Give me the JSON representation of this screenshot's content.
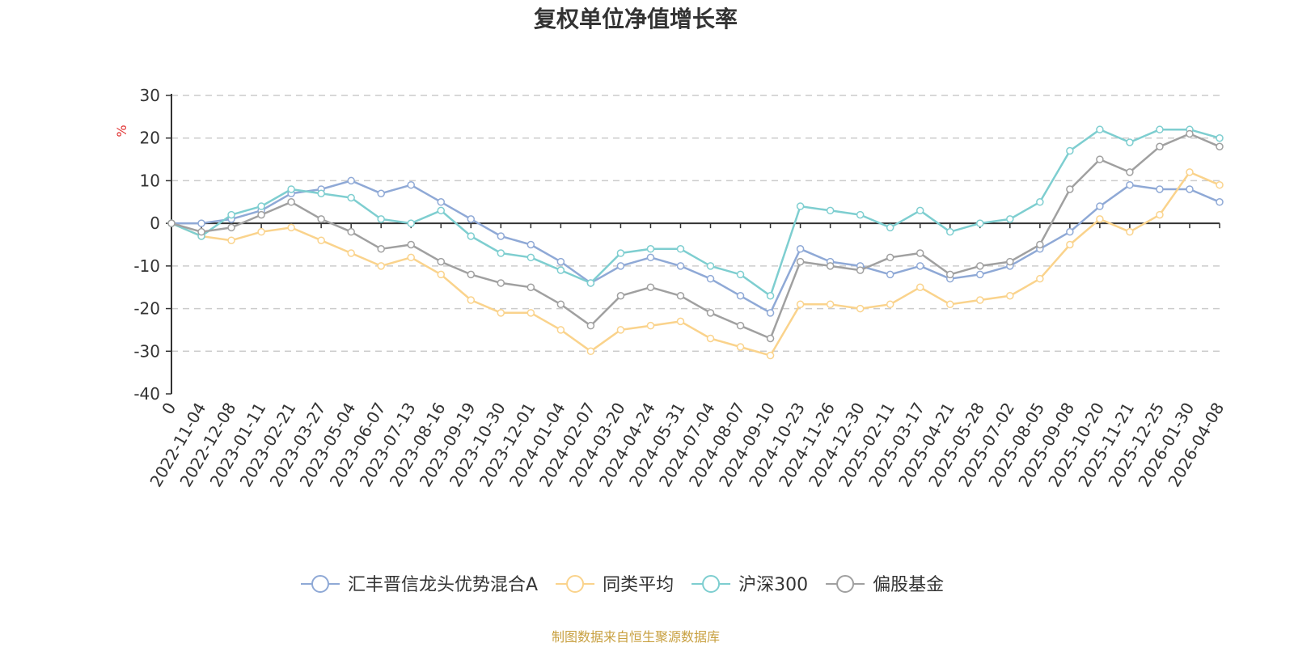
{
  "chart_data": {
    "type": "line",
    "title": "复权单位净值增长率",
    "ylabel": "%",
    "ylim": [
      -40,
      30
    ],
    "yticks": [
      30,
      20,
      10,
      0,
      -10,
      -20,
      -30,
      -40
    ],
    "x_tick_labels": [
      "0",
      "2022-11-04",
      "2022-12-08",
      "2023-01-11",
      "2023-02-21",
      "2023-03-27",
      "2023-05-04",
      "2023-06-07",
      "2023-07-13",
      "2023-08-16",
      "2023-09-19",
      "2023-10-30",
      "2023-12-01",
      "2024-01-04",
      "2024-02-07",
      "2024-03-20",
      "2024-04-24",
      "2024-05-31",
      "2024-07-04",
      "2024-08-07",
      "2024-09-10",
      "2024-10-23",
      "2024-11-26",
      "2024-12-30",
      "2025-02-11",
      "2025-03-17",
      "2025-04-21",
      "2025-05-28",
      "2025-07-02",
      "2025-08-05",
      "2025-09-08",
      "2025-10-20",
      "2025-11-21",
      "2025-12-25",
      "2026-01-30",
      "2026-04-08"
    ],
    "grid": true,
    "legend_position": "bottom-center",
    "series": [
      {
        "name": "汇丰晋信龙头优势混合A",
        "color": "#8FA9D6",
        "values": [
          0,
          0,
          1,
          3,
          7,
          8,
          10,
          7,
          9,
          5,
          1,
          -3,
          -5,
          -9,
          -14,
          -10,
          -8,
          -10,
          -13,
          -17,
          -21,
          -6,
          -9,
          -10,
          -12,
          -10,
          -13,
          -12,
          -10,
          -6,
          -2,
          4,
          9,
          8,
          8,
          5
        ]
      },
      {
        "name": "同类平均",
        "color": "#FAD38C",
        "values": [
          0,
          -3,
          -4,
          -2,
          -1,
          -4,
          -7,
          -10,
          -8,
          -12,
          -18,
          -21,
          -21,
          -25,
          -30,
          -25,
          -24,
          -23,
          -27,
          -29,
          -31,
          -19,
          -19,
          -20,
          -19,
          -15,
          -19,
          -18,
          -17,
          -13,
          -5,
          1,
          -2,
          2,
          12,
          9
        ]
      },
      {
        "name": "沪深300",
        "color": "#7ECED0",
        "values": [
          0,
          -3,
          2,
          4,
          8,
          7,
          6,
          1,
          0,
          3,
          -3,
          -7,
          -8,
          -11,
          -14,
          -7,
          -6,
          -6,
          -10,
          -12,
          -17,
          4,
          3,
          2,
          -1,
          3,
          -2,
          0,
          1,
          5,
          17,
          22,
          19,
          22,
          22,
          20
        ]
      },
      {
        "name": "偏股基金",
        "color": "#A0A0A0",
        "values": [
          0,
          -2,
          -1,
          2,
          5,
          1,
          -2,
          -6,
          -5,
          -9,
          -12,
          -14,
          -15,
          -19,
          -24,
          -17,
          -15,
          -17,
          -21,
          -24,
          -27,
          -9,
          -10,
          -11,
          -8,
          -7,
          -12,
          -10,
          -9,
          -5,
          8,
          15,
          12,
          18,
          21,
          18
        ]
      }
    ]
  },
  "source_note": "制图数据来自恒生聚源数据库",
  "colors": {
    "axis": "#333333",
    "grid": "#CCCCCC",
    "unit_label": "#E03030",
    "source_note": "#C8A040"
  }
}
